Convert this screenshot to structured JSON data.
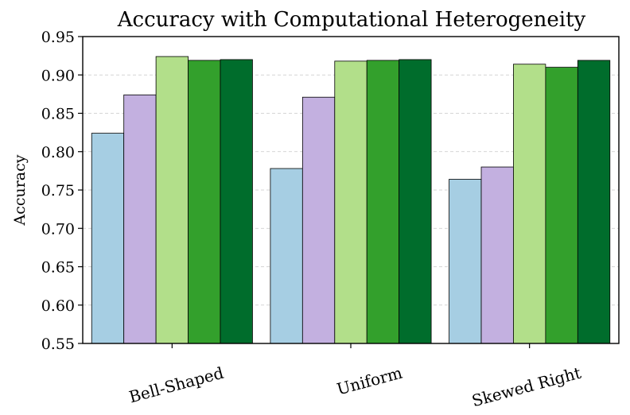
{
  "chart_data": {
    "type": "bar",
    "title": "Accuracy with Computational Heterogeneity",
    "xlabel": "",
    "ylabel": "Accuracy",
    "ylim": [
      0.55,
      0.95
    ],
    "yticks": [
      "0.55",
      "0.60",
      "0.65",
      "0.70",
      "0.75",
      "0.80",
      "0.85",
      "0.90",
      "0.95"
    ],
    "grid": "y-dashed",
    "legend": "none",
    "categories": [
      "Bell-Shaped",
      "Uniform",
      "Skewed Right"
    ],
    "series": [
      {
        "color": "#a6cee3",
        "values": [
          0.824,
          0.778,
          0.764
        ]
      },
      {
        "color": "#c3b0e0",
        "values": [
          0.874,
          0.871,
          0.78
        ]
      },
      {
        "color": "#b2df8a",
        "values": [
          0.924,
          0.918,
          0.914
        ]
      },
      {
        "color": "#33a02c",
        "values": [
          0.919,
          0.919,
          0.91
        ]
      },
      {
        "color": "#006d2c",
        "values": [
          0.92,
          0.92,
          0.919
        ]
      }
    ]
  }
}
